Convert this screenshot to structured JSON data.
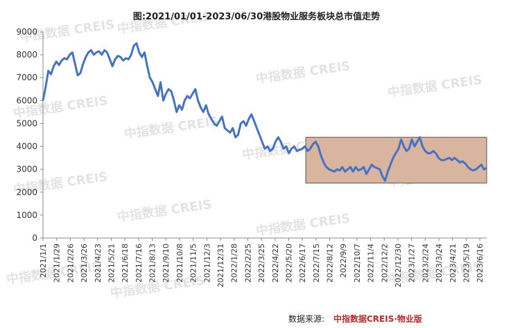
{
  "chart_data": {
    "type": "line",
    "title": "图:2021/01/01-2023/06/30港股物业服务板块总市值走势",
    "xlabel": "",
    "ylabel": "",
    "ylim": [
      0,
      9000
    ],
    "yticks": [
      0,
      1000,
      2000,
      3000,
      4000,
      5000,
      6000,
      7000,
      8000,
      9000
    ],
    "xticks": [
      "2021/1/1",
      "2021/1/29",
      "2021/2/26",
      "2021/3/26",
      "2021/4/23",
      "2021/5/21",
      "2021/6/18",
      "2021/7/16",
      "2021/8/13",
      "2021/9/10",
      "2021/10/8",
      "2021/11/5",
      "2021/12/3",
      "2021/12/31",
      "2022/1/28",
      "2022/2/25",
      "2022/3/25",
      "2022/4/22",
      "2022/5/20",
      "2022/6/17",
      "2022/7/15",
      "2022/8/12",
      "2022/9/9",
      "2022/10/7",
      "2022/11/4",
      "2022/12/2",
      "2022/12/30",
      "2023/1/27",
      "2023/2/24",
      "2023/3/24",
      "2023/4/21",
      "2023/5/19",
      "2023/6/16"
    ],
    "grid": false,
    "highlight": {
      "x_from": "2022/6/24",
      "x_to": "2023/6/30",
      "y_from": 2400,
      "y_to": 4400,
      "color": "#d9b49e"
    },
    "series": [
      {
        "color": "#4472c4",
        "values": [
          6000,
          6600,
          7300,
          7150,
          7500,
          7700,
          7550,
          7750,
          7850,
          7800,
          8000,
          8100,
          7600,
          7100,
          7200,
          7600,
          7900,
          8100,
          8200,
          8000,
          8100,
          8150,
          8000,
          8200,
          8100,
          7800,
          7500,
          7800,
          7950,
          7900,
          7750,
          7850,
          7800,
          8000,
          8400,
          8500,
          8100,
          7900,
          8100,
          7500,
          7000,
          6800,
          6500,
          6200,
          6800,
          6000,
          6300,
          6500,
          6400,
          6000,
          5500,
          5800,
          5600,
          6000,
          6200,
          6100,
          6300,
          6500,
          6000,
          5700,
          5500,
          5800,
          5400,
          5200,
          5000,
          4900,
          5100,
          5300,
          4800,
          4700,
          4600,
          4800,
          4400,
          4500,
          5000,
          5100,
          4900,
          5200,
          5400,
          5100,
          4800,
          4500,
          4200,
          3900,
          4000,
          3800,
          3900,
          4200,
          4400,
          4200,
          3900,
          4000,
          3700,
          3900,
          4000,
          3800,
          3850,
          3900,
          4000,
          3800,
          3900,
          4100,
          4200,
          4000,
          3600,
          3300,
          3100,
          3000,
          2950,
          2900,
          3000,
          2950,
          3100,
          2900,
          3000,
          3100,
          2900,
          3100,
          2950,
          3000,
          3100,
          2800,
          3000,
          3200,
          3100,
          3050,
          3000,
          2700,
          2500,
          2900,
          3200,
          3500,
          3700,
          3900,
          4300,
          4000,
          3800,
          3900,
          4300,
          4000,
          4200,
          4400,
          4000,
          3800,
          3700,
          3700,
          3800,
          3700,
          3500,
          3400,
          3400,
          3450,
          3500,
          3400,
          3500,
          3400,
          3300,
          3350,
          3250,
          3100,
          3000,
          2950,
          3000,
          3100,
          3200,
          3000,
          3050
        ]
      }
    ],
    "watermark": "中指数据 CREIS",
    "source_label": "数据来源:",
    "source_name": "中指数据CREIS·物业版"
  }
}
